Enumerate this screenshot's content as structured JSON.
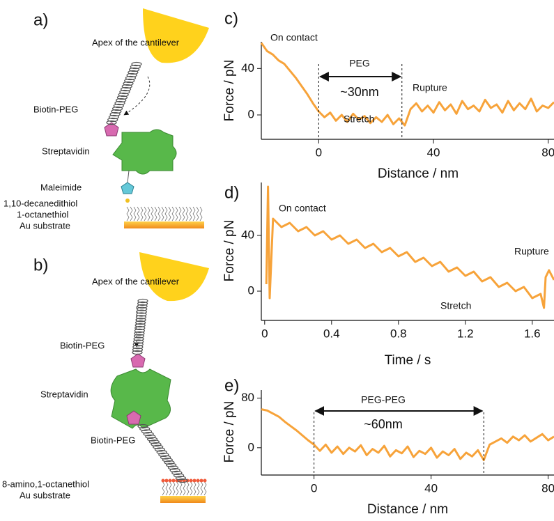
{
  "diagram_a": {
    "label": "a)",
    "apex": "Apex of the cantilever",
    "biotin": "Biotin-PEG",
    "streptavidin": "Streptavidin",
    "maleimide": "Maleimide",
    "thiol1": "1,10-decanedithiol",
    "thiol2": "1-octanethiol",
    "substrate": "Au substrate"
  },
  "diagram_b": {
    "label": "b)",
    "apex": "Apex of the cantilever",
    "biotin1": "Biotin-PEG",
    "streptavidin": "Streptavidin",
    "biotin2": "Biotin-PEG",
    "thiol": "8-amino,1-octanethiol",
    "substrate": "Au substrate"
  },
  "chart_data": [
    {
      "type": "line",
      "panel_label": "c)",
      "xlabel": "Distance / nm",
      "ylabel": "Force / pN",
      "x": [
        -20,
        -18,
        -16,
        -14,
        -12,
        -10,
        -8,
        -6,
        -4,
        -2,
        0,
        2,
        4,
        6,
        8,
        10,
        12,
        14,
        16,
        18,
        20,
        22,
        24,
        26,
        28,
        30,
        32,
        34,
        36,
        38,
        40,
        42,
        44,
        46,
        48,
        50,
        52,
        54,
        56,
        58,
        60,
        62,
        64,
        66,
        68,
        70,
        72,
        74,
        76,
        78,
        80,
        82
      ],
      "series": [
        {
          "color": "#f7a33a",
          "values": [
            62,
            55,
            52,
            47,
            44,
            38,
            32,
            25,
            18,
            10,
            3,
            -2,
            2,
            -5,
            0,
            -6,
            1,
            -4,
            -1,
            -7,
            -2,
            -6,
            0,
            -8,
            -3,
            -9,
            5,
            10,
            3,
            8,
            2,
            11,
            4,
            9,
            1,
            12,
            5,
            8,
            3,
            13,
            6,
            9,
            2,
            12,
            4,
            10,
            5,
            14,
            3,
            8,
            6,
            11
          ]
        }
      ],
      "xlim": [
        -20,
        82
      ],
      "ylim": [
        -21,
        63
      ],
      "xticks": [
        0,
        40,
        80
      ],
      "yticks": [
        0,
        40
      ],
      "span": [
        0,
        29
      ],
      "annotations": [
        "On contact",
        "PEG",
        "~30nm",
        "Rupture",
        "Stretch"
      ]
    },
    {
      "type": "line",
      "panel_label": "d)",
      "xlabel": "Time / s",
      "ylabel": "Force / pN",
      "x": [
        0.01,
        0.02,
        0.03,
        0.05,
        0.1,
        0.15,
        0.2,
        0.25,
        0.3,
        0.35,
        0.4,
        0.45,
        0.5,
        0.55,
        0.6,
        0.65,
        0.7,
        0.75,
        0.8,
        0.85,
        0.9,
        0.95,
        1.0,
        1.05,
        1.1,
        1.15,
        1.2,
        1.25,
        1.3,
        1.35,
        1.4,
        1.45,
        1.5,
        1.55,
        1.6,
        1.65,
        1.67,
        1.68,
        1.7,
        1.73
      ],
      "series": [
        {
          "color": "#f7a33a",
          "values": [
            5,
            75,
            -5,
            52,
            46,
            49,
            43,
            46,
            40,
            43,
            37,
            40,
            34,
            37,
            31,
            34,
            28,
            31,
            25,
            28,
            21,
            24,
            18,
            21,
            14,
            17,
            11,
            14,
            7,
            10,
            3,
            6,
            0,
            3,
            -5,
            -2,
            -12,
            10,
            15,
            8
          ]
        }
      ],
      "xlim": [
        -0.02,
        1.73
      ],
      "ylim": [
        -21,
        78
      ],
      "xticks": [
        0,
        0.4,
        0.8,
        1.2,
        1.6
      ],
      "yticks": [
        0,
        40
      ],
      "annotations": [
        "On contact",
        "Stretch",
        "Rupture"
      ]
    },
    {
      "type": "line",
      "panel_label": "e)",
      "xlabel": "Distance / nm",
      "ylabel": "Force / pN",
      "x": [
        -18,
        -16,
        -14,
        -12,
        -10,
        -8,
        -6,
        -4,
        -2,
        0,
        2,
        4,
        6,
        8,
        10,
        12,
        14,
        16,
        18,
        20,
        22,
        24,
        26,
        28,
        30,
        32,
        34,
        36,
        38,
        40,
        42,
        44,
        46,
        48,
        50,
        52,
        54,
        56,
        58,
        60,
        62,
        64,
        66,
        68,
        70,
        72,
        74,
        76,
        78,
        80,
        82
      ],
      "series": [
        {
          "color": "#f7a33a",
          "values": [
            62,
            60,
            55,
            50,
            42,
            35,
            28,
            20,
            12,
            5,
            -5,
            5,
            -8,
            2,
            -10,
            0,
            -6,
            4,
            -12,
            -2,
            -8,
            3,
            -14,
            -4,
            -9,
            2,
            -15,
            -5,
            -10,
            0,
            -16,
            -6,
            -12,
            -2,
            -18,
            -8,
            -14,
            -4,
            -20,
            5,
            10,
            15,
            8,
            18,
            12,
            20,
            10,
            16,
            22,
            12,
            18
          ]
        }
      ],
      "xlim": [
        -18,
        82
      ],
      "ylim": [
        -44,
        93
      ],
      "xticks": [
        0,
        40,
        80
      ],
      "yticks": [
        0,
        80
      ],
      "span": [
        0,
        58
      ],
      "annotations": [
        "PEG-PEG",
        "~60nm"
      ]
    }
  ]
}
